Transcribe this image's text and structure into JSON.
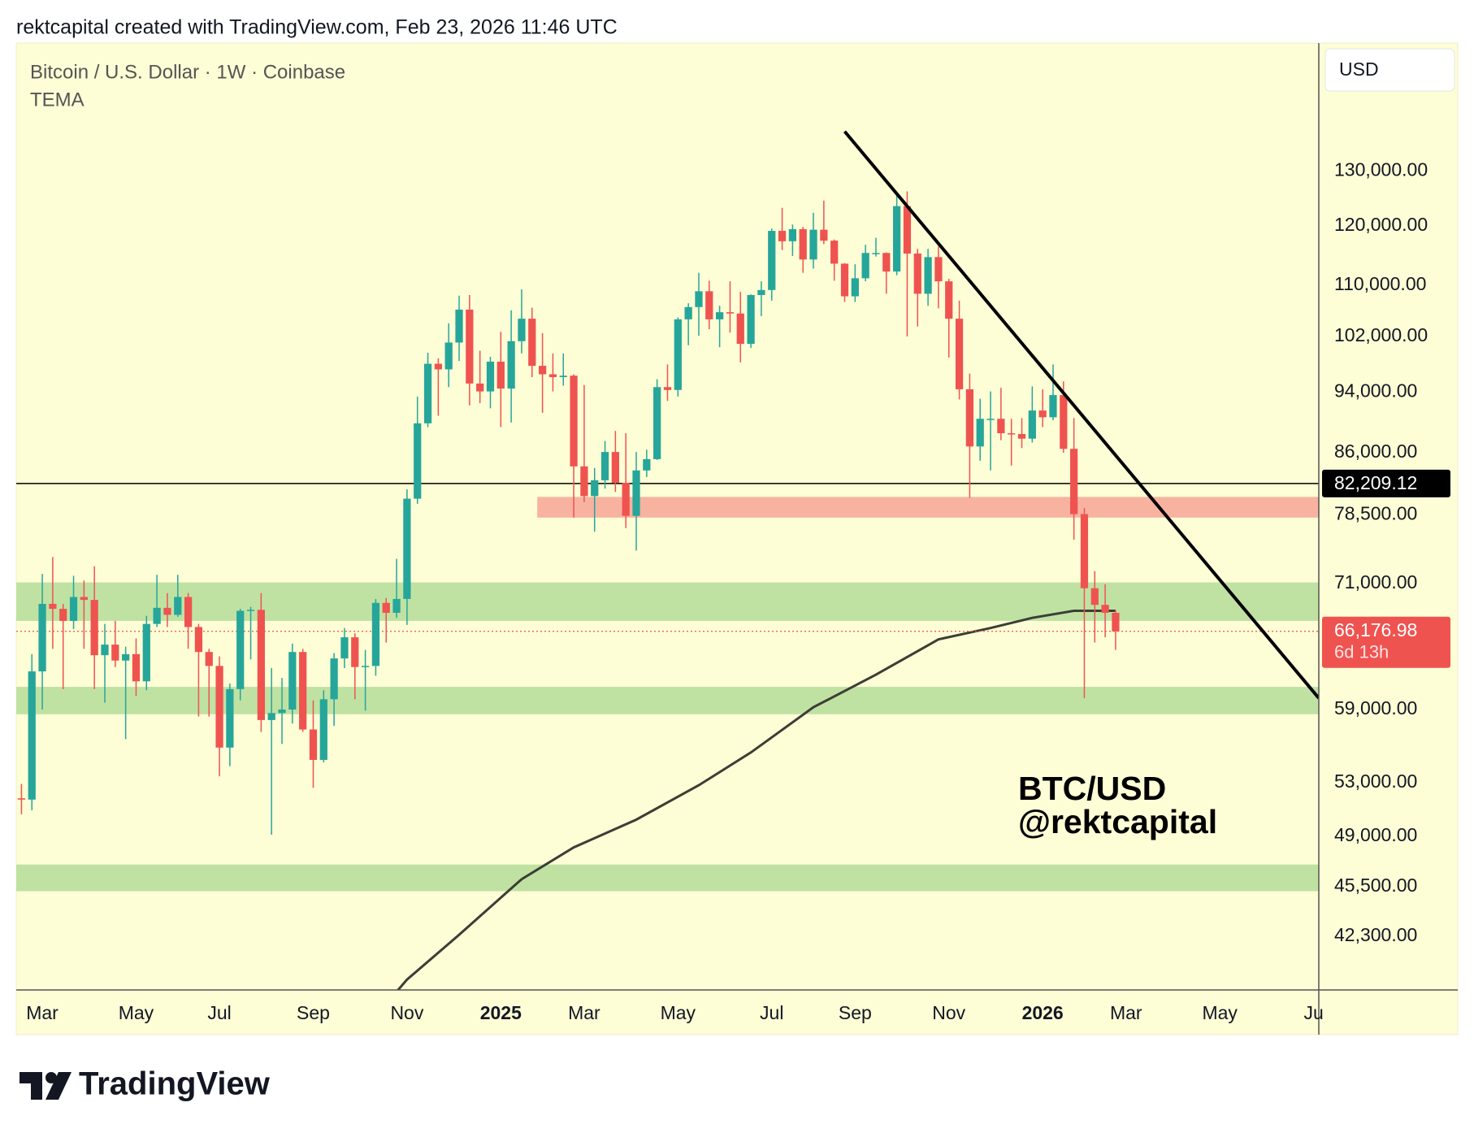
{
  "header": {
    "credit": "rektcapital created with TradingView.com, Feb 23, 2026 11:46 UTC"
  },
  "footer": {
    "brand": "TradingView"
  },
  "chart_data": {
    "type": "candlestick",
    "title": "Bitcoin / U.S. Dollar · 1W · Coinbase",
    "currency": "USD",
    "watermark": [
      "BTC/USD",
      "@rektcapital"
    ],
    "log_scale": true,
    "grid": false,
    "up_color": "#26a69a",
    "down_color": "#ef5350",
    "categories": [
      null,
      null,
      "Mar",
      null,
      null,
      null,
      null,
      null,
      null,
      null,
      null,
      "May",
      null,
      null,
      null,
      null,
      null,
      null,
      null,
      "Jul",
      null,
      null,
      null,
      null,
      null,
      null,
      null,
      null,
      "Sep",
      null,
      null,
      null,
      null,
      null,
      null,
      null,
      null,
      "Nov",
      null,
      null,
      null,
      null,
      null,
      null,
      null,
      null,
      "2025",
      null,
      null,
      null,
      null,
      null,
      null,
      null,
      "Mar",
      null,
      null,
      null,
      null,
      null,
      null,
      null,
      null,
      "May",
      null,
      null,
      null,
      null,
      null,
      null,
      null,
      null,
      "Jul",
      null,
      null,
      null,
      null,
      null,
      null,
      null,
      "Sep",
      null,
      null,
      null,
      null,
      null,
      null,
      null,
      null,
      "Nov",
      null,
      null,
      null,
      null,
      null,
      null,
      null,
      null,
      "2026",
      null,
      null,
      null,
      null,
      null,
      null,
      null,
      "Mar",
      null,
      null,
      null,
      null,
      null,
      null,
      null,
      null,
      "May",
      null,
      null,
      null,
      null,
      null,
      null,
      null,
      null,
      "Ju"
    ],
    "open": [
      51800,
      51700,
      62400,
      68900,
      68400,
      67200,
      69600,
      69300,
      63900,
      64900,
      63400,
      64000,
      61500,
      66900,
      68500,
      67800,
      69600,
      66600,
      64200,
      62900,
      55800,
      60800,
      68200,
      68300,
      58100,
      58700,
      59000,
      64200,
      57300,
      54800,
      59900,
      63600,
      65600,
      62800,
      62900,
      69000,
      68000,
      69400,
      80400,
      89800,
      98000,
      97200,
      101100,
      106100,
      95200,
      94100,
      98300,
      94500,
      101300,
      104700,
      97700,
      96500,
      96100,
      96300,
      84300,
      80700,
      82600,
      86100,
      82300,
      78400,
      83800,
      85200,
      94700,
      94300,
      104600,
      106500,
      109000,
      104600,
      105700,
      105500,
      100900,
      108400,
      109200,
      119100,
      117300,
      119400,
      114200,
      119300,
      117400,
      113500,
      108200,
      111100,
      115300,
      115300,
      112200,
      123500,
      115200,
      108600,
      114600,
      110600,
      104700,
      94400,
      86800,
      90400,
      90400,
      88500,
      88400,
      87800,
      91500,
      90600,
      93600,
      86500,
      78600,
      70500,
      68800,
      68000,
      null,
      null,
      null,
      null,
      null,
      null,
      null,
      null,
      null,
      null,
      null,
      null,
      null,
      null,
      null,
      null,
      null,
      null,
      null
    ],
    "high": [
      52900,
      64000,
      72000,
      73800,
      68900,
      71800,
      71300,
      72800,
      66900,
      67200,
      64700,
      65500,
      67700,
      71900,
      70000,
      71900,
      70000,
      66900,
      64500,
      63800,
      61300,
      68400,
      68600,
      70000,
      62700,
      61800,
      65000,
      64500,
      59800,
      60700,
      64100,
      66500,
      66000,
      64400,
      69400,
      69500,
      73600,
      81500,
      93400,
      99600,
      98800,
      104000,
      108300,
      108400,
      99900,
      99000,
      102700,
      106000,
      109300,
      106400,
      102500,
      99500,
      99500,
      96500,
      95000,
      84100,
      87500,
      88800,
      88500,
      86100,
      86400,
      95800,
      97900,
      104900,
      107100,
      112000,
      110700,
      106700,
      110600,
      108900,
      108500,
      110600,
      119500,
      123200,
      120200,
      119800,
      122300,
      124500,
      117600,
      113600,
      113400,
      116700,
      117900,
      115400,
      125700,
      126200,
      116000,
      116000,
      116400,
      111000,
      107500,
      96600,
      93100,
      94100,
      94600,
      90400,
      90500,
      94800,
      94400,
      97900,
      95500,
      90500,
      79300,
      72300,
      70900,
      68300,
      null,
      null,
      null,
      null,
      null,
      null,
      null,
      null,
      null,
      null,
      null,
      null,
      null,
      null,
      null,
      null,
      null,
      null,
      null
    ],
    "low": [
      50600,
      50900,
      59000,
      64500,
      60800,
      66400,
      64500,
      60800,
      59600,
      62800,
      56500,
      60200,
      60700,
      66600,
      66600,
      67600,
      64500,
      58400,
      58400,
      53500,
      54300,
      59800,
      63500,
      57100,
      49100,
      56100,
      57800,
      57100,
      52600,
      54600,
      57600,
      62700,
      59900,
      58900,
      62000,
      65100,
      67500,
      66800,
      79800,
      89300,
      90800,
      94700,
      98400,
      92200,
      92500,
      91800,
      89300,
      89900,
      99500,
      96100,
      91200,
      94100,
      94900,
      78200,
      80000,
      76600,
      81600,
      81200,
      77000,
      74500,
      83000,
      85100,
      92800,
      93400,
      100700,
      102100,
      103100,
      100400,
      102600,
      98200,
      100300,
      105100,
      107500,
      115800,
      114800,
      112000,
      112700,
      116800,
      110700,
      107300,
      107300,
      110600,
      114700,
      108600,
      111600,
      102000,
      103500,
      106700,
      106300,
      98900,
      93000,
      80500,
      85000,
      83800,
      87600,
      84400,
      86600,
      87300,
      89300,
      90200,
      86000,
      75700,
      60000,
      65100,
      65600,
      64400,
      null,
      null,
      null,
      null,
      null,
      null,
      null,
      null,
      null,
      null,
      null,
      null,
      null,
      null,
      null,
      null,
      null,
      null,
      null
    ],
    "close": [
      51700,
      62400,
      68900,
      68400,
      67200,
      69600,
      69300,
      63900,
      64900,
      63400,
      64000,
      61500,
      66900,
      68500,
      67800,
      69600,
      66600,
      64200,
      62900,
      55800,
      60800,
      68200,
      68300,
      58100,
      58700,
      59000,
      64200,
      57300,
      54800,
      59900,
      63600,
      65600,
      62800,
      62900,
      69000,
      68000,
      69400,
      80400,
      89800,
      98000,
      97200,
      101100,
      106100,
      95200,
      94100,
      98300,
      94500,
      101300,
      104700,
      97700,
      96500,
      96100,
      96300,
      84300,
      80700,
      82600,
      86100,
      82300,
      78400,
      83800,
      85200,
      94700,
      94300,
      104600,
      106500,
      109000,
      104600,
      105700,
      105500,
      100900,
      108400,
      109200,
      119100,
      117300,
      119400,
      114200,
      119300,
      117400,
      113500,
      108200,
      111100,
      115300,
      115300,
      112200,
      123500,
      115200,
      108600,
      114600,
      110600,
      104700,
      94400,
      86800,
      90400,
      90400,
      88500,
      88400,
      87800,
      91500,
      90600,
      93600,
      86500,
      78600,
      70500,
      68800,
      68000,
      66176.98,
      null,
      null,
      null,
      null,
      null,
      null,
      null,
      null,
      null,
      null,
      null,
      null,
      null,
      null,
      null,
      null,
      null,
      null,
      null
    ],
    "tema": {
      "name": "TEMA",
      "color": "#3d3d35",
      "x": [
        36,
        37,
        42,
        48,
        53,
        59,
        65,
        70,
        76,
        82,
        88,
        93,
        97,
        101,
        105
      ],
      "values": [
        39000,
        39700,
        42400,
        46000,
        48200,
        50200,
        52800,
        55400,
        59200,
        62100,
        65400,
        66500,
        67500,
        68200,
        68200
      ]
    },
    "trendline": {
      "color": "#000000",
      "x": [
        79,
        124.5
      ],
      "values": [
        137800,
        60000
      ]
    },
    "zones": [
      {
        "low": 78200,
        "high": 80600,
        "color": "#f8b2a0",
        "from": 50
      },
      {
        "low": 67200,
        "high": 71100,
        "color": "#bfe2a3"
      },
      {
        "low": 58600,
        "high": 61000,
        "color": "#bfe2a3"
      },
      {
        "low": 45200,
        "high": 47000,
        "color": "#bfe2a3"
      }
    ],
    "hline": {
      "value": 82209.12,
      "label": "82,209.12",
      "color": "#000000"
    },
    "last_price": {
      "value": 66176.98,
      "label": "66,176.98",
      "countdown": "6d 13h",
      "color": "#ef5350"
    },
    "ylim": [
      39100,
      156700
    ],
    "yticks": [
      {
        "value": 130000,
        "label": "130,000.00"
      },
      {
        "value": 120000,
        "label": "120,000.00"
      },
      {
        "value": 110000,
        "label": "110,000.00"
      },
      {
        "value": 102000,
        "label": "102,000.00"
      },
      {
        "value": 94000,
        "label": "94,000.00"
      },
      {
        "value": 86000,
        "label": "86,000.00"
      },
      {
        "value": 78500,
        "label": "78,500.00"
      },
      {
        "value": 71000,
        "label": "71,000.00"
      },
      {
        "value": 59000,
        "label": "59,000.00"
      },
      {
        "value": 53000,
        "label": "53,000.00"
      },
      {
        "value": 49000,
        "label": "49,000.00"
      },
      {
        "value": 45500,
        "label": "45,500.00"
      },
      {
        "value": 42300,
        "label": "42,300.00"
      }
    ]
  }
}
